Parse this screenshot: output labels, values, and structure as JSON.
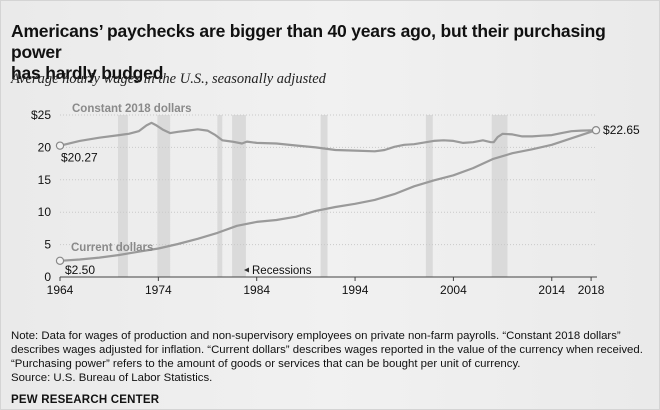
{
  "title_line1": "Americans’ paychecks are bigger than 40 years ago, but their purchasing power",
  "title_line2": "has hardly budged",
  "subtitle": "Average hourly wages in the U.S., seasonally adjusted",
  "notes": [
    "Note: Data for wages of production and non-supervisory employees on private non-farm payrolls. “Constant 2018 dollars”",
    "describes wages adjusted for inflation. “Current dollars” describes wages reported in the value of the currency when received.",
    "“Purchasing power” refers to the amount of goods or services that can be bought per unit of currency.",
    "Source: U.S. Bureau of Labor Statistics."
  ],
  "brand": "PEW RESEARCH CENTER",
  "colors": {
    "line": "#9a9a9a",
    "recession": "#dadada",
    "grid": "#c9c9c9",
    "text": "#111111",
    "bg": "#eeeeee"
  },
  "chart_data": {
    "type": "line",
    "xlim": [
      1964,
      2018.6
    ],
    "ylim": [
      0,
      25
    ],
    "x_ticks": [
      1964,
      1974,
      1984,
      1994,
      2004,
      2014,
      2018
    ],
    "x_tick_labels": [
      "1964",
      "1974",
      "1984",
      "1994",
      "2004",
      "2014",
      "2018"
    ],
    "y_ticks": [
      0,
      5,
      10,
      15,
      20,
      25
    ],
    "y_tick_labels": [
      "0",
      "5",
      "10",
      "15",
      "20",
      "$25"
    ],
    "grid": true,
    "recessions_label": "Recessions",
    "recessions": [
      [
        1969.9,
        1970.9
      ],
      [
        1973.9,
        1975.2
      ],
      [
        1980.0,
        1980.5
      ],
      [
        1981.5,
        1982.9
      ],
      [
        1990.5,
        1991.2
      ],
      [
        2001.2,
        2001.9
      ],
      [
        2007.9,
        2009.5
      ]
    ],
    "series": [
      {
        "name": "Constant 2018 dollars",
        "start_label": "$20.27",
        "end_label": "$22.65",
        "x": [
          1964,
          1966,
          1968,
          1970,
          1971,
          1972,
          1972.8,
          1973.3,
          1973.8,
          1974.5,
          1975.2,
          1976,
          1977,
          1978,
          1979,
          1979.8,
          1980.5,
          1981.5,
          1982.5,
          1983,
          1984,
          1986,
          1988,
          1990,
          1992,
          1994,
          1996,
          1997,
          1998,
          1999,
          2000,
          2002,
          2003,
          2004,
          2005,
          2006,
          2007,
          2007.8,
          2008.1,
          2008.5,
          2009,
          2010,
          2011,
          2012,
          2013,
          2014,
          2015,
          2016,
          2017,
          2018.5
        ],
        "values": [
          20.27,
          21.0,
          21.5,
          21.9,
          22.1,
          22.5,
          23.4,
          23.8,
          23.4,
          22.7,
          22.2,
          22.4,
          22.6,
          22.8,
          22.6,
          21.9,
          21.1,
          20.9,
          20.6,
          20.9,
          20.7,
          20.6,
          20.3,
          20.0,
          19.6,
          19.5,
          19.4,
          19.6,
          20.1,
          20.4,
          20.5,
          21.0,
          21.1,
          21.0,
          20.7,
          20.8,
          21.1,
          20.8,
          20.8,
          21.6,
          22.1,
          22.0,
          21.7,
          21.7,
          21.8,
          21.9,
          22.2,
          22.5,
          22.6,
          22.65
        ]
      },
      {
        "name": "Current dollars",
        "start_label": "$2.50",
        "x": [
          1964,
          1966,
          1968,
          1970,
          1972,
          1974,
          1976,
          1978,
          1980,
          1982,
          1984,
          1986,
          1988,
          1990,
          1992,
          1994,
          1996,
          1998,
          2000,
          2002,
          2004,
          2006,
          2008,
          2010,
          2012,
          2014,
          2016,
          2018.5
        ],
        "values": [
          2.5,
          2.7,
          3.0,
          3.4,
          3.9,
          4.4,
          5.1,
          5.9,
          6.8,
          7.9,
          8.5,
          8.8,
          9.3,
          10.2,
          10.8,
          11.3,
          11.9,
          12.8,
          14.0,
          14.9,
          15.7,
          16.8,
          18.2,
          19.1,
          19.7,
          20.4,
          21.4,
          22.65
        ]
      }
    ]
  }
}
